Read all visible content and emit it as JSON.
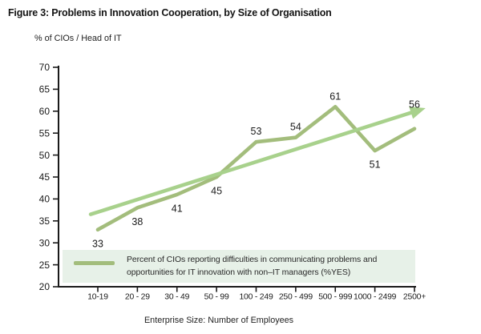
{
  "chart_data": {
    "type": "line",
    "title": "Figure 3: Problems in Innovation Cooperation, by Size of Organisation",
    "ylabel": "% of CIOs / Head of IT",
    "xlabel": "Enterprise Size: Number of Employees",
    "categories": [
      "10-19",
      "20 - 29",
      "30 - 49",
      "50 - 99",
      "100 - 249",
      "250 - 499",
      "500 - 999",
      "1000 - 2499",
      "2500+"
    ],
    "series": [
      {
        "name": "Percent of CIOs reporting difficulties in communicating problems and opportunities for IT innovation with non–IT managers (%YES)",
        "values": [
          33,
          38,
          41,
          45,
          53,
          54,
          61,
          51,
          56
        ],
        "color": "#a3bd7c",
        "value_label_positions": [
          "below",
          "below",
          "below",
          "below",
          "above",
          "above",
          "above",
          "below",
          "above-far"
        ]
      }
    ],
    "trend_arrow": {
      "color": "#a8d18c",
      "start": {
        "category_index": -0.18,
        "value": 36.5
      },
      "end": {
        "category_index": 8.28,
        "value": 60.7
      }
    },
    "ylim": [
      20,
      70
    ],
    "yticks": [
      20,
      25,
      30,
      35,
      40,
      45,
      50,
      55,
      60,
      65,
      70
    ],
    "grid": false,
    "axis_color": "#1a1a1a",
    "legend": {
      "position": "inside-bottom-left",
      "bg": "#e7f1e8",
      "lines": [
        "Percent of CIOs reporting difficulties in communicating problems and",
        "opportunities for IT innovation with non–IT managers (%YES)"
      ]
    }
  }
}
